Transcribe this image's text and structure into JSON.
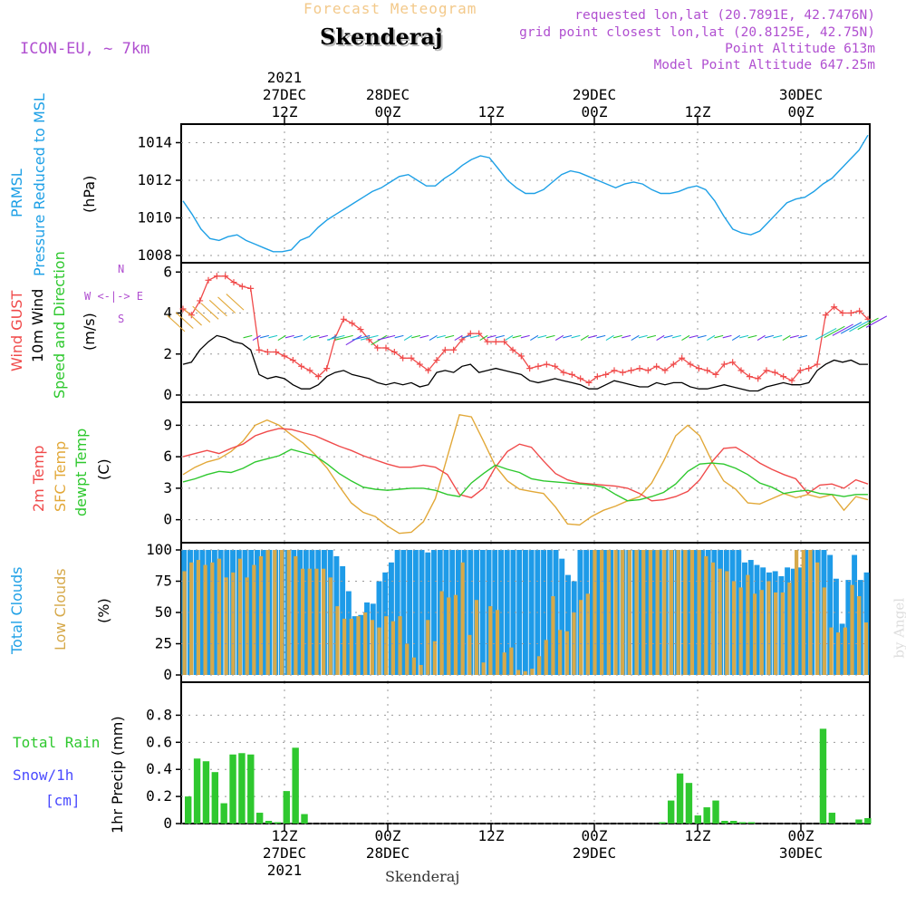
{
  "header": {
    "subtitle": "Forecast Meteogram",
    "location": "Skenderaj",
    "model": "ICON-EU, ~ 7km",
    "requested": "requested lon,lat (20.7891E, 42.7476N)",
    "gridpoint": "grid point closest lon,lat (20.8125E, 42.75N)",
    "altitude": "Point Altitude 613m",
    "model_altitude": "Model Point Altitude 647.25m"
  },
  "time_axis": {
    "top": [
      {
        "l1": "2021",
        "l2": "27DEC",
        "l3": "12Z",
        "h": 12
      },
      {
        "l1": "",
        "l2": "28DEC",
        "l3": "00Z",
        "h": 24
      },
      {
        "l1": "",
        "l2": "",
        "l3": "12Z",
        "h": 36
      },
      {
        "l1": "",
        "l2": "29DEC",
        "l3": "00Z",
        "h": 48
      },
      {
        "l1": "",
        "l2": "",
        "l3": "12Z",
        "h": 60
      },
      {
        "l1": "",
        "l2": "30DEC",
        "l3": "00Z",
        "h": 72
      }
    ],
    "bottom": [
      {
        "l1": "12Z",
        "l2": "27DEC",
        "l3": "2021",
        "h": 12
      },
      {
        "l1": "00Z",
        "l2": "28DEC",
        "l3": "",
        "h": 24
      },
      {
        "l1": "12Z",
        "l2": "",
        "l3": "",
        "h": 36
      },
      {
        "l1": "00Z",
        "l2": "29DEC",
        "l3": "",
        "h": 48
      },
      {
        "l1": "12Z",
        "l2": "",
        "l3": "",
        "h": 60
      },
      {
        "l1": "00Z",
        "l2": "30DEC",
        "l3": "",
        "h": 72
      }
    ],
    "footer": "Skenderaj",
    "watermark": "by Angel"
  },
  "panels": {
    "pressure": {
      "l1": "PRMSL",
      "l2": "Pressure Reduced to MSL",
      "unit": "(hPa)"
    },
    "wind": {
      "l1": "Wind GUST",
      "l2": "10m Wind",
      "l3": "Speed and Direction",
      "unit": "(m/s)",
      "compass_w": "W <-|-> E",
      "compass_n": "N",
      "compass_s": "S"
    },
    "temp": {
      "l1": "2m Temp",
      "l2": "SFC Temp",
      "l3": "dewpt Temp",
      "unit": "(C)"
    },
    "clouds": {
      "l1": "Total Clouds",
      "l2": "Low Clouds",
      "unit": "(%)"
    },
    "precip": {
      "l1": "Total  Rain",
      "l2": "Snow/1h",
      "l3": "[cm]",
      "unit": "1hr Precip (mm)"
    }
  },
  "colors": {
    "pressure": "#1ea0e6",
    "gust": "#f04a4a",
    "wind": "#000000",
    "t2m": "#f04a4a",
    "tsfc": "#e2a838",
    "dewpt": "#2ec82e",
    "total_clouds": "#1e9be8",
    "low_clouds": "#d6a94a",
    "rain": "#2fc82f",
    "snow": "#4a4aff"
  },
  "chart_data": [
    {
      "type": "line",
      "title": "PRMSL",
      "x_hours": [
        0,
        1,
        2,
        3,
        4,
        5,
        6,
        7,
        8,
        9,
        10,
        11,
        12,
        13,
        14,
        15,
        16,
        17,
        18,
        19,
        20,
        21,
        22,
        23,
        24,
        25,
        26,
        27,
        28,
        29,
        30,
        31,
        32,
        33,
        34,
        35,
        36,
        37,
        38,
        39,
        40,
        41,
        42,
        43,
        44,
        45,
        46,
        47,
        48,
        49,
        50,
        51,
        52,
        53,
        54,
        55,
        56,
        57,
        58,
        59,
        60,
        61,
        62,
        63,
        64,
        65,
        66,
        67,
        68,
        69,
        70,
        71,
        72,
        73,
        74,
        75,
        76
      ],
      "series": [
        {
          "name": "PRMSL",
          "values": [
            1010.9,
            1010.2,
            1009.4,
            1008.9,
            1008.8,
            1009.0,
            1009.1,
            1008.8,
            1008.6,
            1008.4,
            1008.2,
            1008.2,
            1008.3,
            1008.8,
            1009.0,
            1009.5,
            1009.9,
            1010.2,
            1010.5,
            1010.8,
            1011.1,
            1011.4,
            1011.6,
            1011.9,
            1012.2,
            1012.3,
            1012.0,
            1011.7,
            1011.7,
            1012.1,
            1012.4,
            1012.8,
            1013.1,
            1013.3,
            1013.2,
            1012.6,
            1012.0,
            1011.6,
            1011.3,
            1011.3,
            1011.5,
            1011.9,
            1012.3,
            1012.5,
            1012.4,
            1012.2,
            1012.0,
            1011.8,
            1011.6,
            1011.8,
            1011.9,
            1011.8,
            1011.5,
            1011.3,
            1011.3,
            1011.4,
            1011.6,
            1011.7,
            1011.5,
            1010.9,
            1010.1,
            1009.4,
            1009.2,
            1009.1,
            1009.3,
            1009.8,
            1010.3,
            1010.8,
            1011.0,
            1011.1,
            1011.4,
            1011.8,
            1012.1,
            1012.6,
            1013.1,
            1013.6,
            1014.4
          ]
        }
      ],
      "ylim": [
        1008,
        1014.6
      ],
      "yticks": [
        1008,
        1010,
        1012,
        1014
      ]
    },
    {
      "type": "line",
      "title": "Wind",
      "series": [
        {
          "name": "Wind GUST",
          "values": [
            4.2,
            3.9,
            4.6,
            5.6,
            5.8,
            5.8,
            5.5,
            5.3,
            5.2,
            2.2,
            2.1,
            2.1,
            1.9,
            1.7,
            1.4,
            1.2,
            0.9,
            1.3,
            2.8,
            3.7,
            3.5,
            3.2,
            2.7,
            2.3,
            2.3,
            2.1,
            1.8,
            1.8,
            1.5,
            1.2,
            1.7,
            2.2,
            2.2,
            2.7,
            3.0,
            3.0,
            2.6,
            2.6,
            2.6,
            2.2,
            1.9,
            1.3,
            1.4,
            1.5,
            1.4,
            1.1,
            1.0,
            0.8,
            0.6,
            0.9,
            1.0,
            1.2,
            1.1,
            1.2,
            1.3,
            1.2,
            1.4,
            1.2,
            1.5,
            1.8,
            1.5,
            1.3,
            1.2,
            1.0,
            1.5,
            1.6,
            1.2,
            0.9,
            0.8,
            1.2,
            1.1,
            0.9,
            0.7,
            1.2,
            1.3,
            1.5,
            3.9,
            4.3,
            4.0,
            4.0,
            4.1,
            3.7
          ]
        },
        {
          "name": "10m Wind",
          "values": [
            1.5,
            1.6,
            2.2,
            2.6,
            2.9,
            2.8,
            2.6,
            2.5,
            2.2,
            1.0,
            0.8,
            0.9,
            0.8,
            0.5,
            0.3,
            0.3,
            0.5,
            0.9,
            1.1,
            1.2,
            1.0,
            0.9,
            0.8,
            0.6,
            0.5,
            0.6,
            0.5,
            0.6,
            0.4,
            0.5,
            1.1,
            1.2,
            1.1,
            1.4,
            1.5,
            1.1,
            1.2,
            1.3,
            1.2,
            1.1,
            1.0,
            0.7,
            0.6,
            0.7,
            0.8,
            0.7,
            0.6,
            0.5,
            0.3,
            0.3,
            0.5,
            0.7,
            0.6,
            0.5,
            0.4,
            0.4,
            0.6,
            0.5,
            0.6,
            0.6,
            0.4,
            0.3,
            0.3,
            0.4,
            0.5,
            0.4,
            0.3,
            0.2,
            0.2,
            0.4,
            0.5,
            0.6,
            0.5,
            0.5,
            0.6,
            1.2,
            1.5,
            1.7,
            1.6,
            1.7,
            1.5,
            1.5
          ]
        }
      ],
      "ylim": [
        0,
        6.1
      ],
      "yticks": [
        0,
        2,
        4,
        6
      ]
    },
    {
      "type": "line",
      "title": "Temperature",
      "series": [
        {
          "name": "2m Temp",
          "values": [
            6.0,
            6.3,
            6.6,
            6.3,
            6.8,
            7.2,
            8.0,
            8.4,
            8.7,
            8.6,
            8.3,
            8.0,
            7.5,
            7.0,
            6.6,
            6.1,
            5.7,
            5.3,
            5.0,
            5.0,
            5.2,
            5.0,
            4.3,
            2.4,
            2.1,
            3.0,
            5.0,
            6.5,
            7.2,
            6.9,
            5.6,
            4.4,
            3.8,
            3.5,
            3.4,
            3.3,
            3.2,
            3.0,
            2.5,
            1.8,
            1.9,
            2.2,
            2.7,
            3.8,
            5.5,
            6.8,
            6.9,
            6.2,
            5.4,
            4.8,
            4.3,
            3.9,
            2.5,
            3.3,
            3.4,
            3.0,
            3.8,
            3.4
          ]
        },
        {
          "name": "SFC Temp",
          "values": [
            4.3,
            5.0,
            5.5,
            5.8,
            6.5,
            7.5,
            9.0,
            9.5,
            9.0,
            8.1,
            7.3,
            6.2,
            4.9,
            3.2,
            1.6,
            0.7,
            0.3,
            -0.6,
            -1.3,
            -1.2,
            -0.2,
            2.0,
            6.0,
            10.0,
            9.8,
            7.5,
            5.1,
            3.7,
            2.9,
            2.7,
            2.5,
            1.2,
            -0.4,
            -0.5,
            0.3,
            0.9,
            1.3,
            1.8,
            2.2,
            3.5,
            5.6,
            8.0,
            9.0,
            8.0,
            5.6,
            3.7,
            2.9,
            1.6,
            1.5,
            2.0,
            2.5,
            2.1,
            2.4,
            2.1,
            2.4,
            0.9,
            2.2,
            1.9
          ]
        },
        {
          "name": "dewpt Temp",
          "values": [
            3.6,
            3.9,
            4.3,
            4.6,
            4.5,
            4.9,
            5.5,
            5.8,
            6.1,
            6.7,
            6.4,
            6.1,
            5.3,
            4.4,
            3.7,
            3.1,
            2.9,
            2.8,
            2.9,
            3.0,
            3.0,
            2.8,
            2.4,
            2.2,
            3.5,
            4.4,
            5.2,
            4.8,
            4.5,
            3.9,
            3.7,
            3.6,
            3.5,
            3.4,
            3.3,
            3.1,
            2.4,
            1.8,
            1.9,
            2.2,
            2.6,
            3.4,
            4.6,
            5.3,
            5.4,
            5.3,
            4.9,
            4.3,
            3.5,
            3.1,
            2.5,
            2.7,
            2.8,
            2.5,
            2.4,
            2.2,
            2.4,
            2.4
          ]
        }
      ],
      "ylim": [
        -1.5,
        10.5
      ],
      "yticks": [
        0,
        3,
        6,
        9
      ]
    },
    {
      "type": "bar",
      "title": "Clouds",
      "series": [
        {
          "name": "Total Clouds",
          "values": [
            100,
            100,
            100,
            100,
            100,
            100,
            100,
            100,
            100,
            100,
            100,
            100,
            100,
            100,
            100,
            100,
            100,
            100,
            100,
            100,
            100,
            100,
            100,
            100,
            100,
            95,
            87,
            67,
            47,
            48,
            58,
            57,
            75,
            82,
            90,
            100,
            100,
            100,
            100,
            100,
            98,
            100,
            100,
            100,
            100,
            100,
            100,
            100,
            100,
            100,
            100,
            100,
            100,
            100,
            100,
            100,
            100,
            100,
            100,
            100,
            100,
            100,
            93,
            80,
            75,
            100,
            100,
            100,
            100,
            100,
            100,
            100,
            100,
            100,
            100,
            100,
            100,
            100,
            100,
            100,
            100,
            100,
            100,
            100,
            100,
            100,
            100,
            100,
            100,
            100,
            100,
            100,
            90,
            92,
            88,
            86,
            82,
            83,
            79,
            86,
            85,
            86,
            100,
            100,
            100,
            100,
            96,
            77,
            41,
            76,
            96,
            76,
            82
          ]
        },
        {
          "name": "Low Clouds",
          "values": [
            83,
            90,
            92,
            88,
            90,
            93,
            78,
            82,
            93,
            78,
            88,
            95,
            100,
            100,
            100,
            100,
            95,
            85,
            85,
            85,
            85,
            78,
            55,
            45,
            45,
            47,
            50,
            44,
            38,
            47,
            43,
            47,
            25,
            14,
            8,
            44,
            27,
            67,
            62,
            64,
            90,
            32,
            60,
            10,
            55,
            52,
            18,
            22,
            4,
            3,
            5,
            15,
            28,
            63,
            36,
            35,
            50,
            60,
            65,
            100,
            100,
            100,
            100,
            100,
            100,
            100,
            100,
            100,
            100,
            100,
            100,
            100,
            100,
            100,
            100,
            95,
            90,
            85,
            83,
            75,
            70,
            80,
            65,
            68,
            75,
            66,
            66,
            74,
            100,
            100,
            100,
            90,
            70,
            38,
            34,
            38,
            72,
            63,
            42
          ]
        }
      ],
      "ylim": [
        0,
        100
      ],
      "yticks": [
        0,
        25,
        50,
        75,
        100
      ]
    },
    {
      "type": "bar",
      "title": "1hr Precip",
      "series": [
        {
          "name": "Total Rain",
          "values": [
            0.2,
            0.48,
            0.46,
            0.38,
            0.15,
            0.51,
            0.52,
            0.51,
            0.08,
            0.02,
            0.01,
            0.24,
            0.56,
            0.07,
            0,
            0,
            0,
            0,
            0,
            0,
            0,
            0,
            0,
            0,
            0,
            0,
            0,
            0,
            0,
            0,
            0,
            0,
            0,
            0,
            0,
            0,
            0,
            0,
            0,
            0,
            0,
            0,
            0,
            0,
            0,
            0,
            0,
            0,
            0,
            0,
            0,
            0,
            0,
            0.01,
            0.17,
            0.37,
            0.3,
            0.06,
            0.12,
            0.17,
            0.02,
            0.02,
            0.01,
            0.01,
            0,
            0,
            0,
            0,
            0,
            0,
            0,
            0.7,
            0.08,
            0,
            0,
            0.03,
            0.04
          ]
        }
      ],
      "ylim": [
        0,
        0.95
      ],
      "yticks": [
        0,
        0.2,
        0.4,
        0.6,
        0.8
      ]
    }
  ]
}
